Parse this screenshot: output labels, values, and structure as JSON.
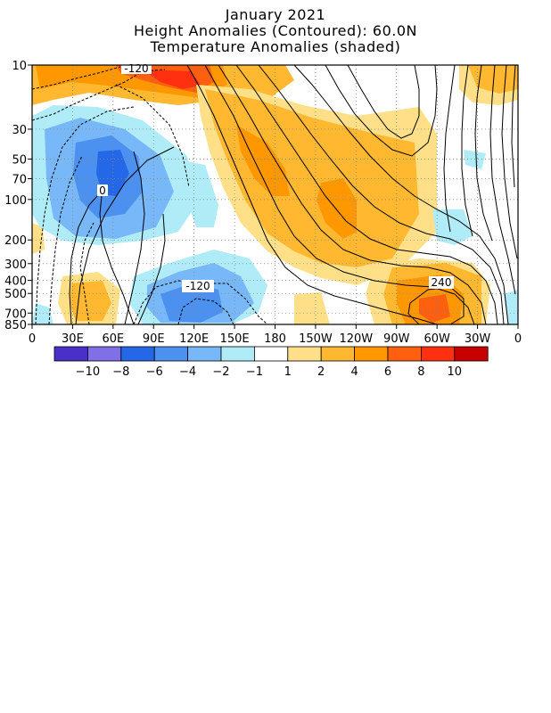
{
  "titles": {
    "line1": "January 2021",
    "line2": "Height Anomalies (Contoured): 60.0N",
    "line3": "Temperature Anomalies (shaded)"
  },
  "chart_data": {
    "type": "heatmap",
    "title": "January 2021",
    "subtitle": "Height Anomalies (Contoured): 60.0N — Temperature Anomalies (shaded)",
    "x_axis": {
      "tick_labels": [
        "0",
        "30E",
        "60E",
        "90E",
        "120E",
        "150E",
        "180",
        "150W",
        "120W",
        "90W",
        "60W",
        "30W",
        "0"
      ],
      "range": [
        0,
        360
      ]
    },
    "y_axis": {
      "tick_labels": [
        "10",
        "30",
        "50",
        "70",
        "100",
        "200",
        "300",
        "400",
        "500",
        "700",
        "850"
      ],
      "values": [
        10,
        30,
        50,
        70,
        100,
        200,
        300,
        400,
        500,
        700,
        850
      ],
      "scale": "log",
      "range": [
        10,
        850
      ],
      "inverted": true
    },
    "grid": true,
    "colorbar": {
      "tick_labels": [
        "-10",
        "-8",
        "-6",
        "-4",
        "-2",
        "-1",
        "1",
        "2",
        "4",
        "6",
        "8",
        "10"
      ],
      "colors": [
        "#4a30c8",
        "#8070e8",
        "#2468e8",
        "#4c90f0",
        "#78b8f8",
        "#b0ecf8",
        "#ffffff",
        "#ffe088",
        "#ffb830",
        "#ff9800",
        "#ff6010",
        "#ff3010",
        "#c80000"
      ]
    },
    "contour_labels": [
      {
        "text": "-120",
        "lon": 100,
        "p": 10
      },
      {
        "text": "0",
        "lon": 67,
        "p": 90
      },
      {
        "text": "-120",
        "lon": 158,
        "p": 440
      },
      {
        "text": "240",
        "lon": 304,
        "p": 440
      }
    ]
  }
}
